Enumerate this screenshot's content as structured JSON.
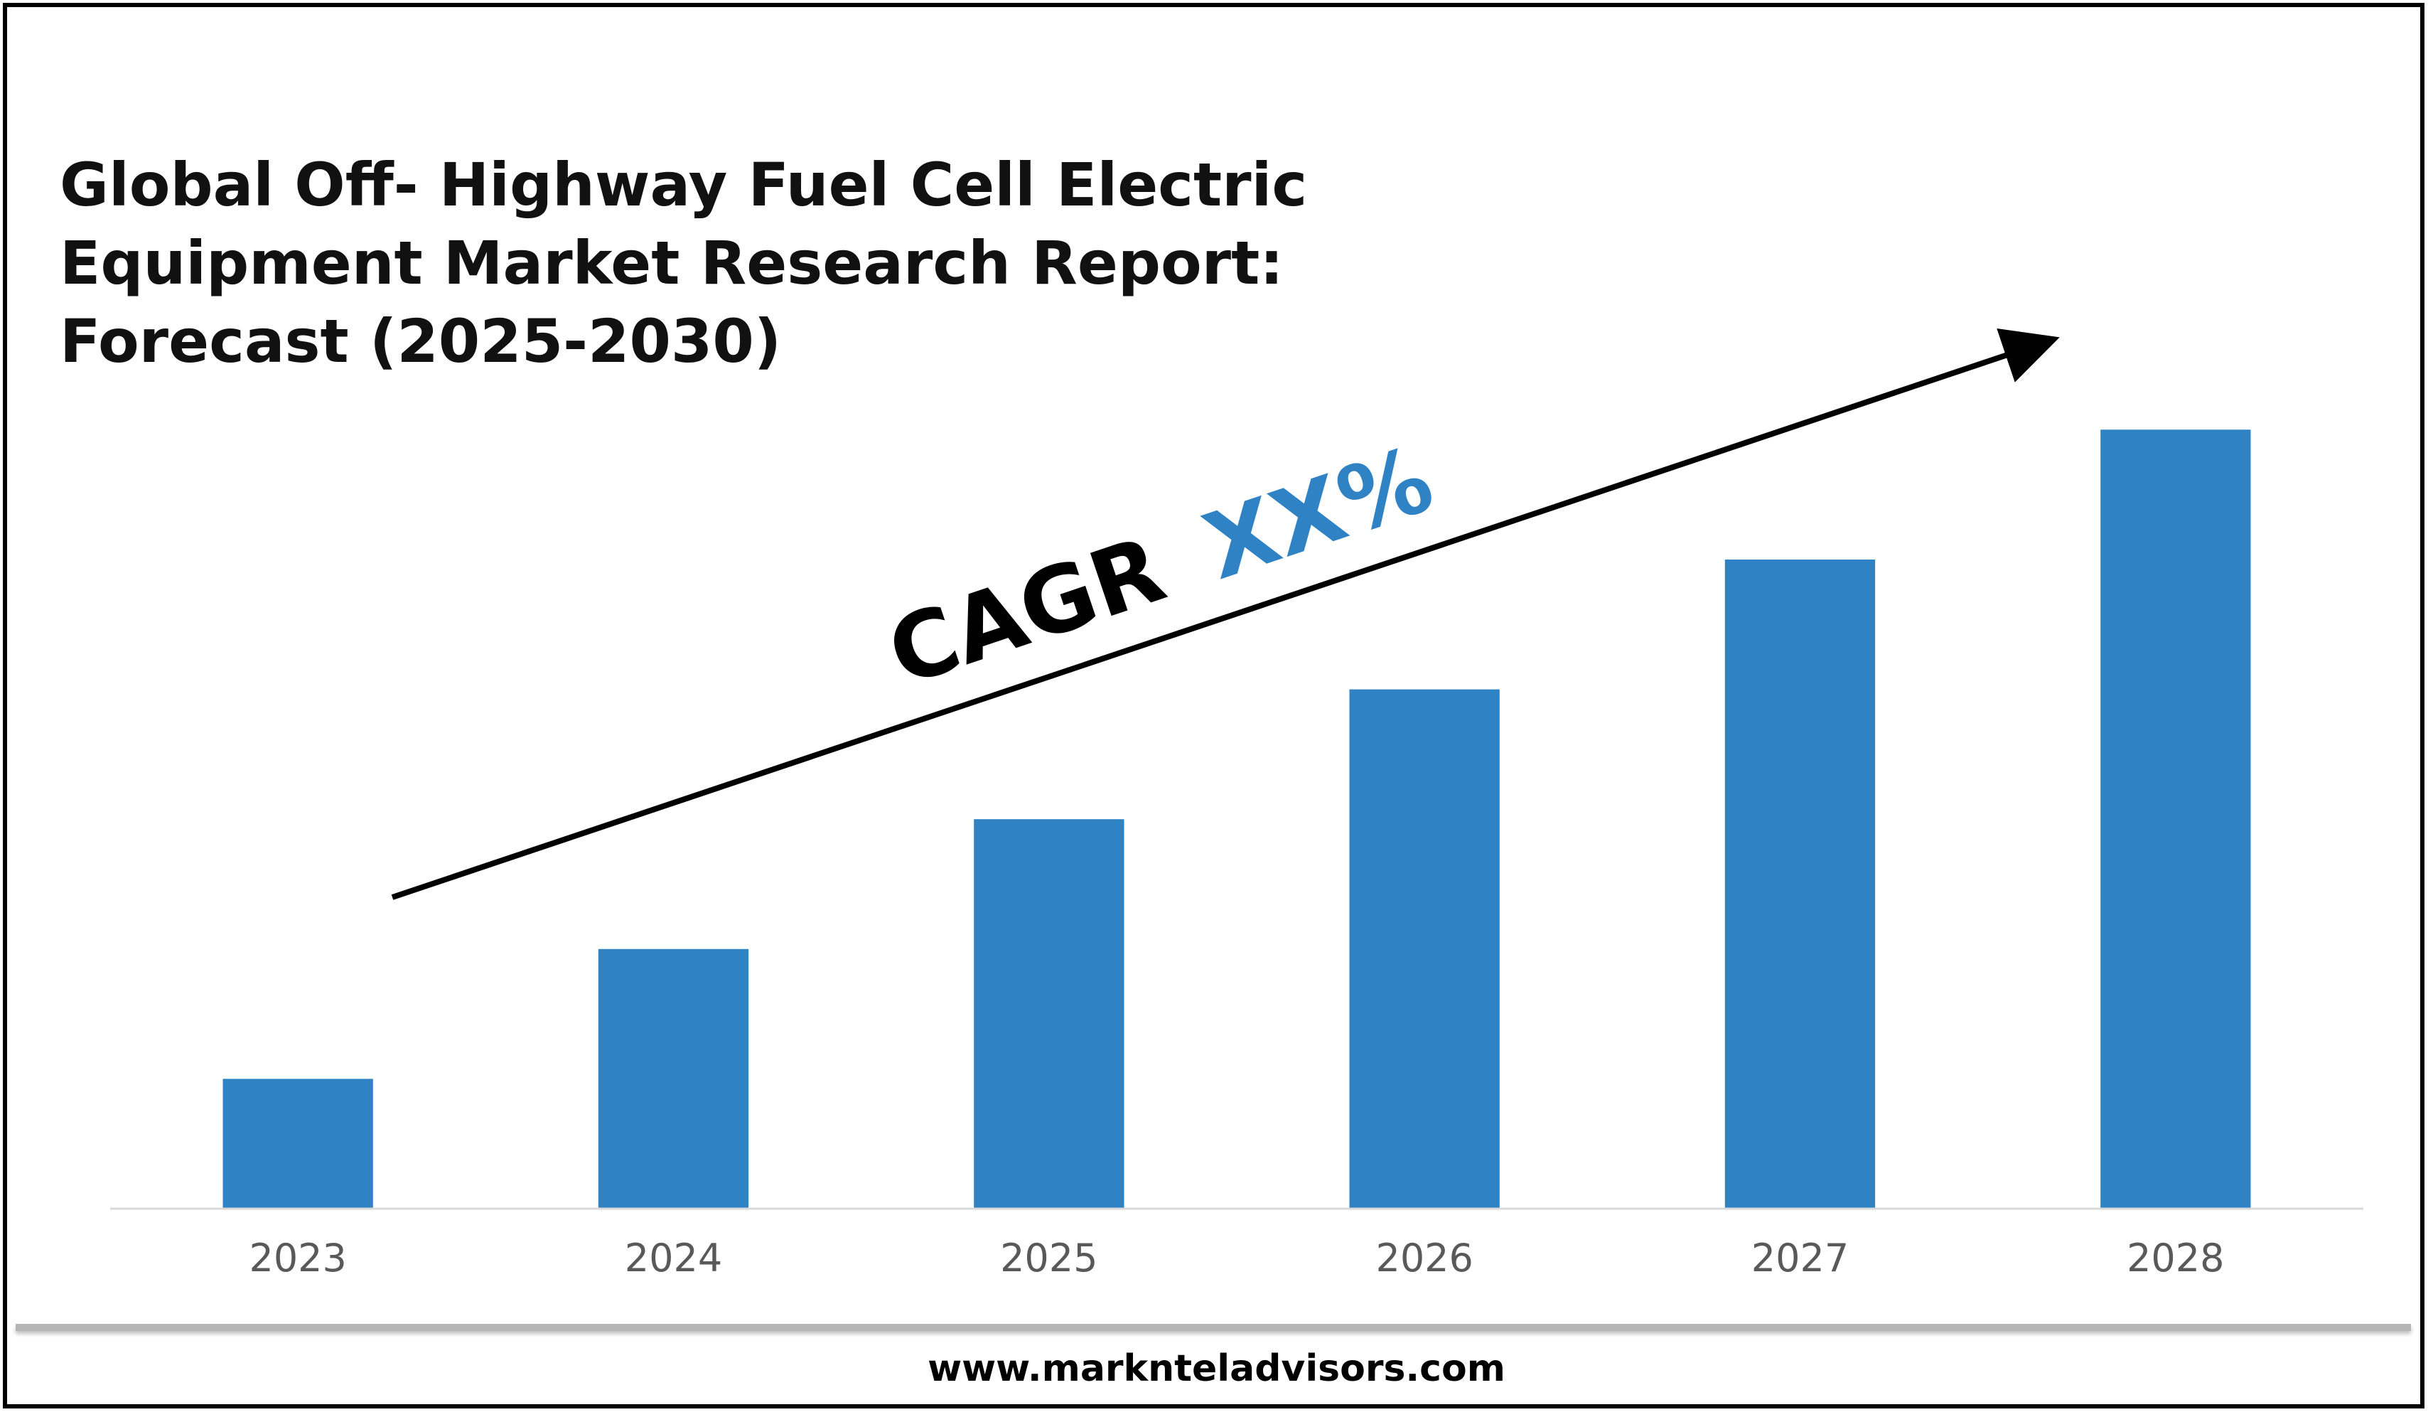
{
  "title_lines": [
    "Global Off- Highway Fuel Cell Electric",
    "Equipment Market Research Report:",
    "Forecast (2025-2030)"
  ],
  "annotation": {
    "prefix": "CAGR",
    "value": "XX%",
    "prefix_color": "#000000",
    "value_color": "#2f82c4"
  },
  "footer": {
    "url": "www.marknteladvisors.com"
  },
  "colors": {
    "bar": "#2f82c4",
    "axis": "#d9d9d9",
    "tick_text": "#595959"
  },
  "chart_data": {
    "type": "bar",
    "categories": [
      "2023",
      "2024",
      "2025",
      "2026",
      "2027",
      "2028"
    ],
    "values": [
      1,
      2,
      3,
      4,
      5,
      6
    ],
    "ylim": [
      0,
      6.9
    ],
    "grid": false,
    "legend": "none",
    "trend_arrow": true
  }
}
